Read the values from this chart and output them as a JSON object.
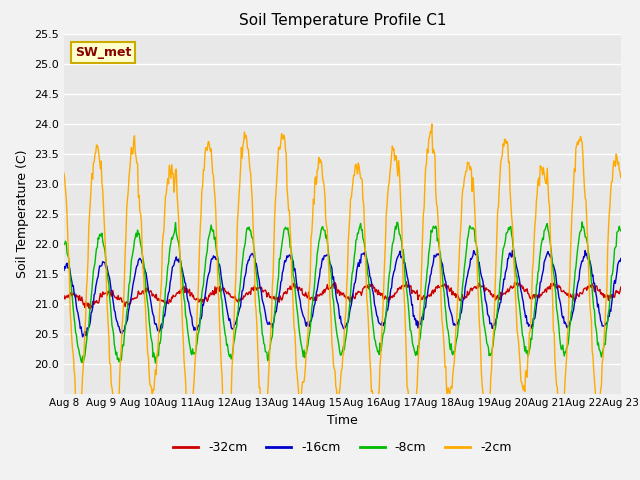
{
  "title": "Soil Temperature Profile C1",
  "xlabel": "Time",
  "ylabel": "Soil Temperature (C)",
  "ylim": [
    19.5,
    25.5
  ],
  "yticks": [
    20.0,
    20.5,
    21.0,
    21.5,
    22.0,
    22.5,
    23.0,
    23.5,
    24.0,
    24.5,
    25.0,
    25.5
  ],
  "xtick_labels": [
    "Aug 8",
    "Aug 9",
    "Aug 10",
    "Aug 11",
    "Aug 12",
    "Aug 13",
    "Aug 14",
    "Aug 15",
    "Aug 16",
    "Aug 17",
    "Aug 18",
    "Aug 19",
    "Aug 20",
    "Aug 21",
    "Aug 22",
    "Aug 23"
  ],
  "series_colors": {
    "-32cm": "#cc0000",
    "-16cm": "#0000cc",
    "-8cm": "#00bb00",
    "-2cm": "#ffaa00"
  },
  "annotation_text": "SW_met",
  "annotation_color": "#880000",
  "annotation_bg": "#ffffcc",
  "annotation_border": "#ccaa00",
  "n_days": 15,
  "pts_per_day": 48
}
